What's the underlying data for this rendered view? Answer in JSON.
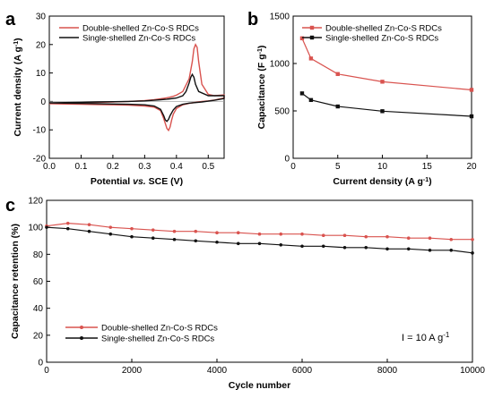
{
  "colors": {
    "double": "#d9534f",
    "single": "#111111",
    "axis": "#000000"
  },
  "chart_data": [
    {
      "panel": "a",
      "type": "line",
      "xlabel_parts": [
        "Potential ",
        "vs.",
        " SCE (V)"
      ],
      "ylabel_parts": [
        "Current density (A g",
        "-1",
        ")"
      ],
      "xlim": [
        0.0,
        0.55
      ],
      "ylim": [
        -20,
        30
      ],
      "xticks": [
        0.0,
        0.1,
        0.2,
        0.3,
        0.4,
        0.5
      ],
      "xtick_labels": [
        "0.0",
        "0.1",
        "0.2",
        "0.3",
        "0.4",
        "0.5"
      ],
      "yticks": [
        -20,
        -10,
        0,
        10,
        20,
        30
      ],
      "ytick_labels": [
        "-20",
        "-10",
        "0",
        "10",
        "20",
        "30"
      ],
      "legend_position": "top-left",
      "series": [
        {
          "name": "Double-shelled Zn-Co-S RDCs",
          "key": "double",
          "markers": false,
          "x": [
            0.0,
            0.05,
            0.1,
            0.15,
            0.2,
            0.25,
            0.3,
            0.33,
            0.35,
            0.36,
            0.37,
            0.375,
            0.38,
            0.39,
            0.4,
            0.42,
            0.44,
            0.45,
            0.455,
            0.46,
            0.465,
            0.47,
            0.48,
            0.5,
            0.52,
            0.55,
            0.55,
            0.52,
            0.5,
            0.48,
            0.46,
            0.45,
            0.44,
            0.42,
            0.4,
            0.39,
            0.385,
            0.38,
            0.375,
            0.37,
            0.36,
            0.35,
            0.33,
            0.3,
            0.25,
            0.2,
            0.15,
            0.1,
            0.05,
            0.0
          ],
          "y": [
            -0.6,
            -0.5,
            -0.4,
            -0.3,
            -0.2,
            0.0,
            0.3,
            0.6,
            0.9,
            1.1,
            1.3,
            1.4,
            1.5,
            1.8,
            2.2,
            3.5,
            8.0,
            14.0,
            18.5,
            20.0,
            19.0,
            14.0,
            6.0,
            2.5,
            2.0,
            2.3,
            1.2,
            0.5,
            0.2,
            0.0,
            -0.3,
            -0.5,
            -0.7,
            -1.2,
            -2.5,
            -4.5,
            -6.5,
            -9.0,
            -10.2,
            -9.5,
            -6.0,
            -3.2,
            -2.0,
            -1.6,
            -1.3,
            -1.2,
            -1.1,
            -1.0,
            -0.9,
            -0.8
          ]
        },
        {
          "name": "Single-shelled Zn-Co-S RDCs",
          "key": "single",
          "markers": false,
          "x": [
            0.0,
            0.05,
            0.1,
            0.15,
            0.2,
            0.25,
            0.3,
            0.33,
            0.35,
            0.37,
            0.38,
            0.4,
            0.42,
            0.43,
            0.44,
            0.445,
            0.45,
            0.455,
            0.46,
            0.47,
            0.5,
            0.55,
            0.55,
            0.52,
            0.5,
            0.48,
            0.46,
            0.44,
            0.42,
            0.4,
            0.39,
            0.38,
            0.375,
            0.37,
            0.365,
            0.36,
            0.35,
            0.33,
            0.3,
            0.25,
            0.2,
            0.15,
            0.1,
            0.05,
            0.0
          ],
          "y": [
            -0.5,
            -0.4,
            -0.3,
            -0.2,
            -0.1,
            0.0,
            0.2,
            0.4,
            0.6,
            0.8,
            0.9,
            1.2,
            2.0,
            3.5,
            6.5,
            8.5,
            9.5,
            8.5,
            6.0,
            3.5,
            2.0,
            2.0,
            1.0,
            0.4,
            0.1,
            -0.2,
            -0.4,
            -0.6,
            -1.0,
            -1.8,
            -3.0,
            -5.0,
            -6.3,
            -7.0,
            -6.5,
            -5.0,
            -2.8,
            -1.6,
            -1.2,
            -1.0,
            -0.9,
            -0.8,
            -0.7,
            -0.6,
            -0.5
          ]
        }
      ]
    },
    {
      "panel": "b",
      "type": "line",
      "xlabel_parts": [
        "Current density (A g",
        "-1",
        ")"
      ],
      "ylabel_parts": [
        "Capacitance (F g",
        "-1",
        ")"
      ],
      "xlim": [
        0,
        20
      ],
      "ylim": [
        0,
        1500
      ],
      "xticks": [
        0,
        5,
        10,
        15,
        20
      ],
      "xtick_labels": [
        "0",
        "5",
        "10",
        "15",
        "20"
      ],
      "yticks": [
        0,
        500,
        1000,
        1500
      ],
      "ytick_labels": [
        "0",
        "500",
        "1000",
        "1500"
      ],
      "legend_position": "top-right",
      "series": [
        {
          "name": "Double-shelled Zn-Co-S RDCs",
          "key": "double",
          "markers": true,
          "x": [
            1,
            2,
            5,
            10,
            20
          ],
          "y": [
            1266,
            1053,
            889,
            808,
            722
          ]
        },
        {
          "name": "Single-shelled Zn-Co-S RDCs",
          "key": "single",
          "markers": true,
          "x": [
            1,
            2,
            5,
            10,
            20
          ],
          "y": [
            685,
            615,
            547,
            497,
            443
          ]
        }
      ]
    },
    {
      "panel": "c",
      "type": "scatter",
      "xlabel_parts": [
        "Cycle number"
      ],
      "ylabel_parts": [
        "Capacitance retention (%)"
      ],
      "xlim": [
        0,
        10000
      ],
      "ylim": [
        0,
        120
      ],
      "xticks": [
        0,
        2000,
        4000,
        6000,
        8000,
        10000
      ],
      "xtick_labels": [
        "0",
        "2000",
        "4000",
        "6000",
        "8000",
        "10000"
      ],
      "yticks": [
        0,
        20,
        40,
        60,
        80,
        100,
        120
      ],
      "ytick_labels": [
        "0",
        "20",
        "40",
        "60",
        "80",
        "100",
        "120"
      ],
      "legend_position": "bottom-left",
      "annotation_parts": [
        "I = 10 A g",
        "-1"
      ],
      "series": [
        {
          "name": "Double-shelled Zn-Co-S RDCs",
          "key": "double",
          "markers": true,
          "x": [
            0,
            500,
            1000,
            1500,
            2000,
            2500,
            3000,
            3500,
            4000,
            4500,
            5000,
            5500,
            6000,
            6500,
            7000,
            7500,
            8000,
            8500,
            9000,
            9500,
            10000
          ],
          "y": [
            101,
            103,
            102,
            100,
            99,
            98,
            97,
            97,
            96,
            96,
            95,
            95,
            95,
            94,
            94,
            93,
            93,
            92,
            92,
            91,
            91
          ]
        },
        {
          "name": "Single-shelled Zn-Co-S RDCs",
          "key": "single",
          "markers": true,
          "x": [
            0,
            500,
            1000,
            1500,
            2000,
            2500,
            3000,
            3500,
            4000,
            4500,
            5000,
            5500,
            6000,
            6500,
            7000,
            7500,
            8000,
            8500,
            9000,
            9500,
            10000
          ],
          "y": [
            100,
            99,
            97,
            95,
            93,
            92,
            91,
            90,
            89,
            88,
            88,
            87,
            86,
            86,
            85,
            85,
            84,
            84,
            83,
            83,
            81
          ]
        }
      ]
    }
  ]
}
